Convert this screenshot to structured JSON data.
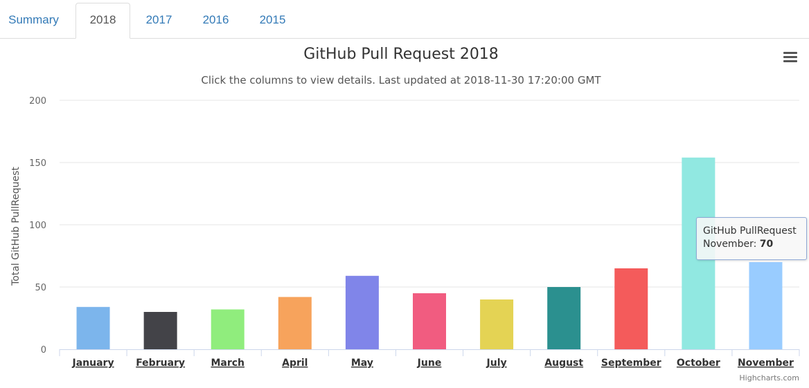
{
  "tabs": [
    {
      "label": "Summary",
      "active": false
    },
    {
      "label": "2018",
      "active": true
    },
    {
      "label": "2017",
      "active": false
    },
    {
      "label": "2016",
      "active": false
    },
    {
      "label": "2015",
      "active": false
    }
  ],
  "menu_icon": "hamburger-menu-icon",
  "chart_data": {
    "type": "bar",
    "title": "GitHub Pull Request 2018",
    "subtitle": "Click the columns to view details. Last updated at 2018-11-30 17:20:00 GMT",
    "xlabel": "",
    "ylabel": "Total GitHub PullRequest",
    "ylim": [
      0,
      200
    ],
    "yticks": [
      0,
      50,
      100,
      150,
      200
    ],
    "grid": true,
    "categories": [
      "January",
      "February",
      "March",
      "April",
      "May",
      "June",
      "July",
      "August",
      "September",
      "October",
      "November"
    ],
    "values": [
      34,
      30,
      32,
      42,
      59,
      45,
      40,
      50,
      65,
      154,
      70
    ],
    "colors": [
      "#7cb5ec",
      "#434348",
      "#90ed7d",
      "#f7a35c",
      "#8085e9",
      "#f15c80",
      "#e4d354",
      "#2b908f",
      "#f45b5b",
      "#91e8e1",
      "#99ccff"
    ],
    "series": [
      {
        "name": "GitHub PullRequest",
        "values": [
          34,
          30,
          32,
          42,
          59,
          45,
          40,
          50,
          65,
          154,
          70
        ]
      }
    ],
    "tooltip": {
      "series": "GitHub PullRequest",
      "category": "November",
      "value": "70"
    },
    "credits": "Highcharts.com"
  }
}
